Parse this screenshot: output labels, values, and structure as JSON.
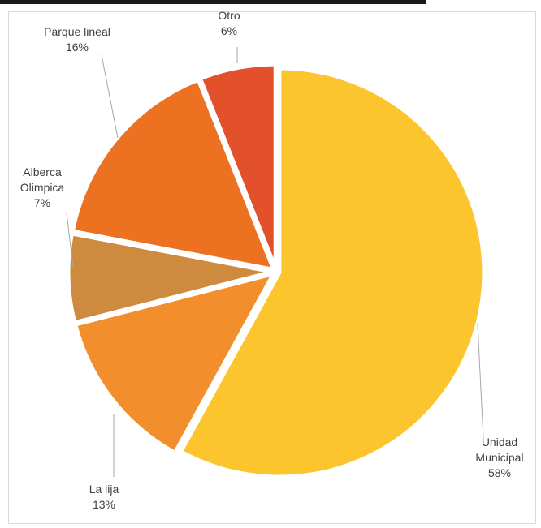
{
  "chart_data": {
    "type": "pie",
    "slices": [
      {
        "name": "Unidad Municipal",
        "value": 58,
        "label_lines": [
          "Unidad",
          "Municipal",
          "58%"
        ],
        "color": "#FDC52D"
      },
      {
        "name": "La lija",
        "value": 13,
        "label_lines": [
          "La lija",
          "13%"
        ],
        "color": "#F28F2C"
      },
      {
        "name": "Alberca Olimpica",
        "value": 7,
        "label_lines": [
          "Alberca",
          "Olimpica",
          "7%"
        ],
        "color": "#CE8A3E"
      },
      {
        "name": "Parque lineal",
        "value": 16,
        "label_lines": [
          "Parque lineal",
          "16%"
        ],
        "color": "#EC7222"
      },
      {
        "name": "Otro",
        "value": 6,
        "label_lines": [
          "Otro",
          "6%"
        ],
        "color": "#E3502C"
      }
    ],
    "start": "12 o'clock",
    "direction": "clockwise",
    "legend": "none",
    "data_labels": "outside with leader lines"
  }
}
